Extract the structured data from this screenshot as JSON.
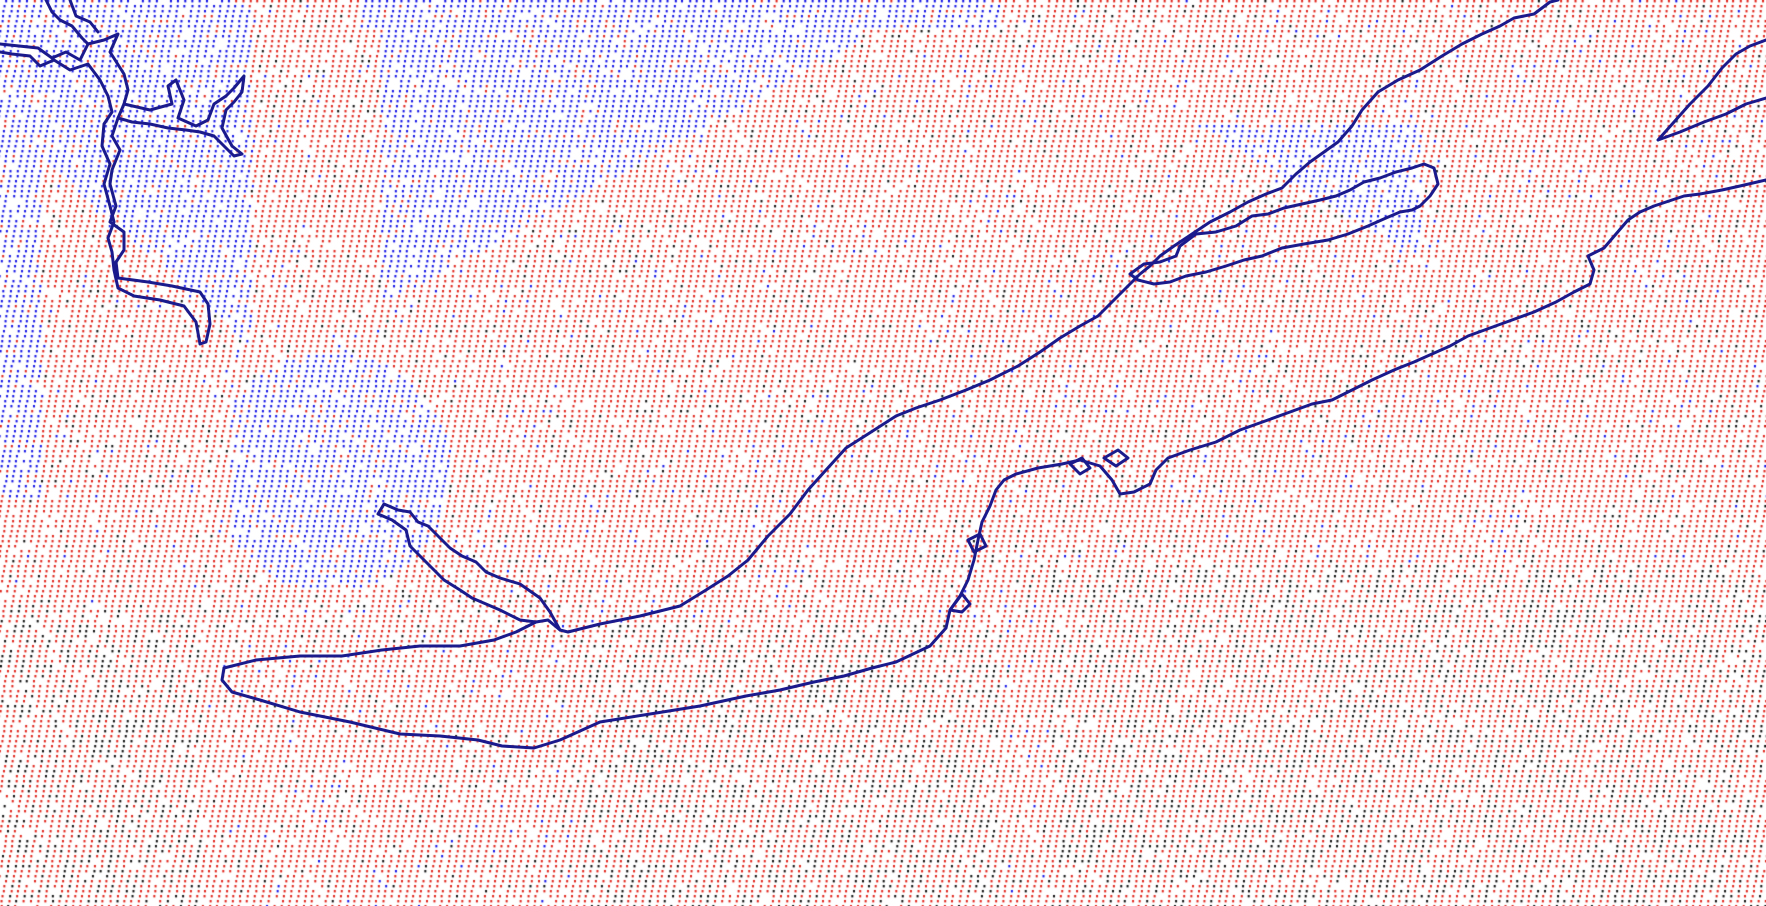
{
  "map": {
    "type": "scatter-dot-field-with-coastlines",
    "background": "#ffffff",
    "colors": {
      "warm": "#e0251c",
      "cold": "#1414e6",
      "neutral": "#111111",
      "coastline": "#1a1a8c"
    },
    "dot_classes": [
      "warm",
      "cold",
      "neutral"
    ]
  },
  "chart_data": {
    "type": "scatter",
    "title": "",
    "xlabel": "",
    "ylabel": "",
    "legend": "none",
    "grid": false,
    "series": [
      {
        "color": "#e0251c",
        "share": 0.72
      },
      {
        "color": "#1414e6",
        "share": 0.18
      },
      {
        "color": "#111111",
        "share": 0.1
      }
    ]
  }
}
